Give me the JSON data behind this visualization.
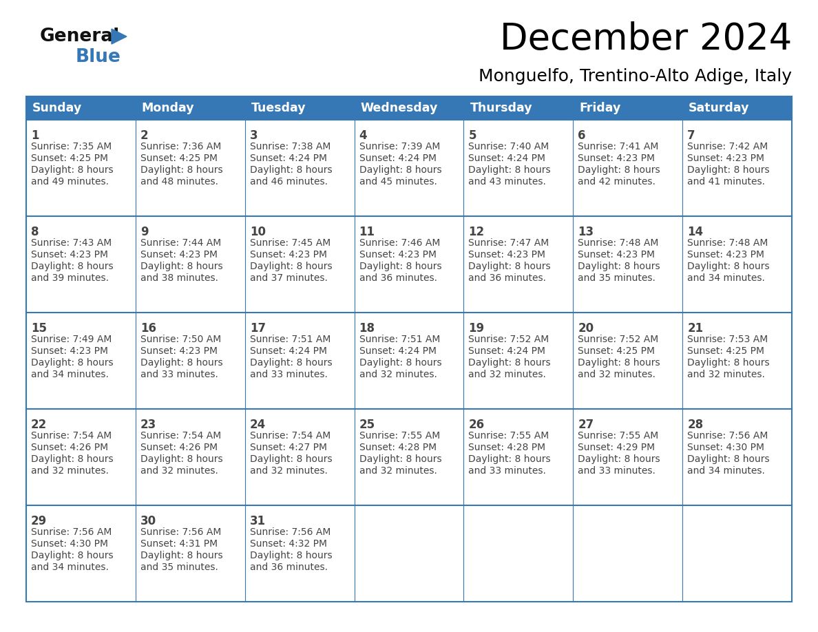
{
  "title": "December 2024",
  "subtitle": "Monguelfo, Trentino-Alto Adige, Italy",
  "header_color": "#3578b5",
  "header_text_color": "#ffffff",
  "border_color": "#3578b5",
  "text_color": "#444444",
  "days_of_week": [
    "Sunday",
    "Monday",
    "Tuesday",
    "Wednesday",
    "Thursday",
    "Friday",
    "Saturday"
  ],
  "calendar": [
    [
      {
        "day": "1",
        "sunrise": "7:35 AM",
        "sunset": "4:25 PM",
        "daylight": "8 hours\nand 49 minutes."
      },
      {
        "day": "2",
        "sunrise": "7:36 AM",
        "sunset": "4:25 PM",
        "daylight": "8 hours\nand 48 minutes."
      },
      {
        "day": "3",
        "sunrise": "7:38 AM",
        "sunset": "4:24 PM",
        "daylight": "8 hours\nand 46 minutes."
      },
      {
        "day": "4",
        "sunrise": "7:39 AM",
        "sunset": "4:24 PM",
        "daylight": "8 hours\nand 45 minutes."
      },
      {
        "day": "5",
        "sunrise": "7:40 AM",
        "sunset": "4:24 PM",
        "daylight": "8 hours\nand 43 minutes."
      },
      {
        "day": "6",
        "sunrise": "7:41 AM",
        "sunset": "4:23 PM",
        "daylight": "8 hours\nand 42 minutes."
      },
      {
        "day": "7",
        "sunrise": "7:42 AM",
        "sunset": "4:23 PM",
        "daylight": "8 hours\nand 41 minutes."
      }
    ],
    [
      {
        "day": "8",
        "sunrise": "7:43 AM",
        "sunset": "4:23 PM",
        "daylight": "8 hours\nand 39 minutes."
      },
      {
        "day": "9",
        "sunrise": "7:44 AM",
        "sunset": "4:23 PM",
        "daylight": "8 hours\nand 38 minutes."
      },
      {
        "day": "10",
        "sunrise": "7:45 AM",
        "sunset": "4:23 PM",
        "daylight": "8 hours\nand 37 minutes."
      },
      {
        "day": "11",
        "sunrise": "7:46 AM",
        "sunset": "4:23 PM",
        "daylight": "8 hours\nand 36 minutes."
      },
      {
        "day": "12",
        "sunrise": "7:47 AM",
        "sunset": "4:23 PM",
        "daylight": "8 hours\nand 36 minutes."
      },
      {
        "day": "13",
        "sunrise": "7:48 AM",
        "sunset": "4:23 PM",
        "daylight": "8 hours\nand 35 minutes."
      },
      {
        "day": "14",
        "sunrise": "7:48 AM",
        "sunset": "4:23 PM",
        "daylight": "8 hours\nand 34 minutes."
      }
    ],
    [
      {
        "day": "15",
        "sunrise": "7:49 AM",
        "sunset": "4:23 PM",
        "daylight": "8 hours\nand 34 minutes."
      },
      {
        "day": "16",
        "sunrise": "7:50 AM",
        "sunset": "4:23 PM",
        "daylight": "8 hours\nand 33 minutes."
      },
      {
        "day": "17",
        "sunrise": "7:51 AM",
        "sunset": "4:24 PM",
        "daylight": "8 hours\nand 33 minutes."
      },
      {
        "day": "18",
        "sunrise": "7:51 AM",
        "sunset": "4:24 PM",
        "daylight": "8 hours\nand 32 minutes."
      },
      {
        "day": "19",
        "sunrise": "7:52 AM",
        "sunset": "4:24 PM",
        "daylight": "8 hours\nand 32 minutes."
      },
      {
        "day": "20",
        "sunrise": "7:52 AM",
        "sunset": "4:25 PM",
        "daylight": "8 hours\nand 32 minutes."
      },
      {
        "day": "21",
        "sunrise": "7:53 AM",
        "sunset": "4:25 PM",
        "daylight": "8 hours\nand 32 minutes."
      }
    ],
    [
      {
        "day": "22",
        "sunrise": "7:54 AM",
        "sunset": "4:26 PM",
        "daylight": "8 hours\nand 32 minutes."
      },
      {
        "day": "23",
        "sunrise": "7:54 AM",
        "sunset": "4:26 PM",
        "daylight": "8 hours\nand 32 minutes."
      },
      {
        "day": "24",
        "sunrise": "7:54 AM",
        "sunset": "4:27 PM",
        "daylight": "8 hours\nand 32 minutes."
      },
      {
        "day": "25",
        "sunrise": "7:55 AM",
        "sunset": "4:28 PM",
        "daylight": "8 hours\nand 32 minutes."
      },
      {
        "day": "26",
        "sunrise": "7:55 AM",
        "sunset": "4:28 PM",
        "daylight": "8 hours\nand 33 minutes."
      },
      {
        "day": "27",
        "sunrise": "7:55 AM",
        "sunset": "4:29 PM",
        "daylight": "8 hours\nand 33 minutes."
      },
      {
        "day": "28",
        "sunrise": "7:56 AM",
        "sunset": "4:30 PM",
        "daylight": "8 hours\nand 34 minutes."
      }
    ],
    [
      {
        "day": "29",
        "sunrise": "7:56 AM",
        "sunset": "4:30 PM",
        "daylight": "8 hours\nand 34 minutes."
      },
      {
        "day": "30",
        "sunrise": "7:56 AM",
        "sunset": "4:31 PM",
        "daylight": "8 hours\nand 35 minutes."
      },
      {
        "day": "31",
        "sunrise": "7:56 AM",
        "sunset": "4:32 PM",
        "daylight": "8 hours\nand 36 minutes."
      },
      null,
      null,
      null,
      null
    ]
  ],
  "logo_general_color": "#111111",
  "logo_blue_color": "#3578b5",
  "fig_width": 11.88,
  "fig_height": 9.18,
  "dpi": 100
}
